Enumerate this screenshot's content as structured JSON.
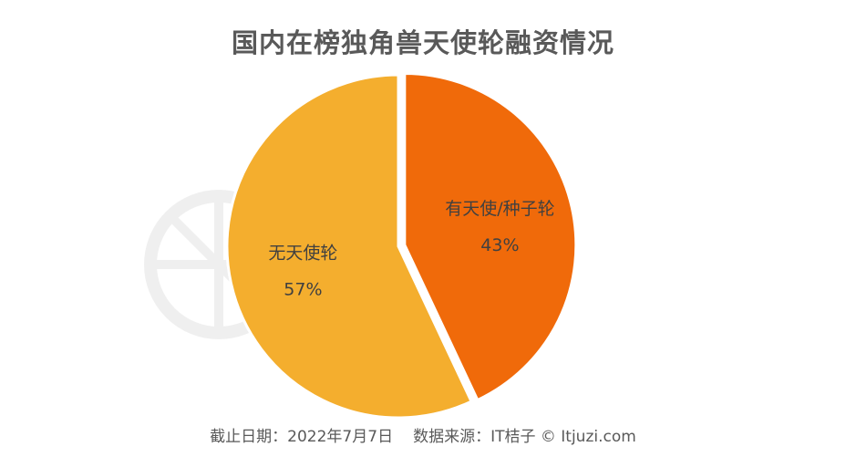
{
  "chart_data": {
    "type": "pie",
    "title": "国内在榜独角兽天使轮融资情况",
    "slices": [
      {
        "label": "有天使/种子轮",
        "value": 43,
        "value_label": "43%",
        "color": "#F06A0A"
      },
      {
        "label": "无天使轮",
        "value": 57,
        "value_label": "57%",
        "color": "#F4AE2E"
      }
    ],
    "start_angle_deg": 0,
    "direction": "clockwise",
    "exploded_slice": "有天使/种子轮"
  },
  "footer": {
    "date": "截止日期：2022年7月7日",
    "source": "数据来源：IT桔子 © Itjuzi.com"
  }
}
